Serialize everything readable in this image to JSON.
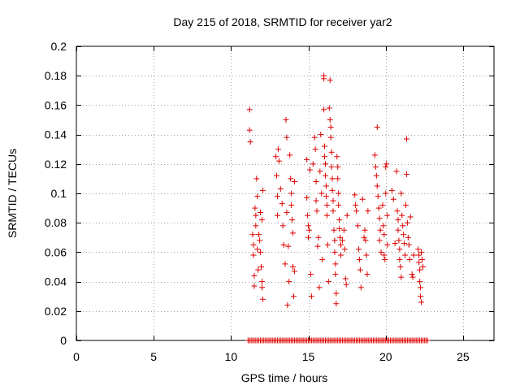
{
  "chart_data": {
    "type": "scatter",
    "title": "Day 215 of 2018, SRMTID for receiver yar2",
    "xlabel": "GPS time / hours",
    "ylabel": "SRMTID / TECUs",
    "xlim": [
      0,
      27
    ],
    "ylim": [
      0,
      0.2
    ],
    "xticks": [
      0,
      5,
      10,
      15,
      20,
      25
    ],
    "xtick_labels": [
      "0",
      "5",
      "10",
      "15",
      "20",
      "25"
    ],
    "yticks": [
      0,
      0.02,
      0.04,
      0.06,
      0.08,
      0.1,
      0.12,
      0.14,
      0.16,
      0.18,
      0.2
    ],
    "ytick_labels": [
      "0",
      "0.02",
      "0.04",
      "0.06",
      "0.08",
      "0.1",
      "0.12",
      "0.14",
      "0.16",
      "0.18",
      "0.2"
    ],
    "grid": true,
    "marker": "+",
    "marker_color": "#dd0000",
    "series": [
      {
        "name": "SRMTID",
        "points": [
          [
            11.2,
            0.157
          ],
          [
            11.2,
            0.143
          ],
          [
            11.25,
            0.135
          ],
          [
            11.4,
            0.072
          ],
          [
            11.45,
            0.065
          ],
          [
            11.45,
            0.058
          ],
          [
            11.5,
            0.044
          ],
          [
            11.5,
            0.037
          ],
          [
            11.55,
            0.09
          ],
          [
            11.6,
            0.085
          ],
          [
            11.6,
            0.078
          ],
          [
            11.65,
            0.11
          ],
          [
            11.7,
            0.098
          ],
          [
            11.7,
            0.062
          ],
          [
            11.75,
            0.048
          ],
          [
            11.8,
            0.072
          ],
          [
            11.85,
            0.068
          ],
          [
            11.9,
            0.087
          ],
          [
            11.9,
            0.06
          ],
          [
            11.95,
            0.05
          ],
          [
            12.0,
            0.04
          ],
          [
            12.0,
            0.036
          ],
          [
            12.05,
            0.028
          ],
          [
            12.0,
            0.082
          ],
          [
            12.05,
            0.102
          ],
          [
            12.9,
            0.125
          ],
          [
            12.95,
            0.112
          ],
          [
            13.0,
            0.098
          ],
          [
            13.0,
            0.085
          ],
          [
            13.05,
            0.13
          ],
          [
            13.1,
            0.122
          ],
          [
            13.2,
            0.103
          ],
          [
            13.3,
            0.093
          ],
          [
            13.35,
            0.078
          ],
          [
            13.4,
            0.065
          ],
          [
            13.5,
            0.052
          ],
          [
            13.55,
            0.15
          ],
          [
            13.6,
            0.138
          ],
          [
            13.6,
            0.087
          ],
          [
            13.65,
            0.024
          ],
          [
            13.7,
            0.064
          ],
          [
            13.75,
            0.04
          ],
          [
            13.8,
            0.126
          ],
          [
            13.85,
            0.11
          ],
          [
            13.9,
            0.1
          ],
          [
            13.9,
            0.092
          ],
          [
            13.95,
            0.082
          ],
          [
            14.0,
            0.073
          ],
          [
            14.0,
            0.05
          ],
          [
            14.05,
            0.03
          ],
          [
            14.1,
            0.108
          ],
          [
            14.1,
            0.047
          ],
          [
            14.9,
            0.123
          ],
          [
            14.9,
            0.097
          ],
          [
            14.95,
            0.085
          ],
          [
            15.0,
            0.078
          ],
          [
            15.0,
            0.07
          ],
          [
            15.05,
            0.075
          ],
          [
            15.1,
            0.116
          ],
          [
            15.15,
            0.045
          ],
          [
            15.2,
            0.03
          ],
          [
            15.3,
            0.12
          ],
          [
            15.4,
            0.138
          ],
          [
            15.45,
            0.13
          ],
          [
            15.5,
            0.108
          ],
          [
            15.5,
            0.095
          ],
          [
            15.55,
            0.088
          ],
          [
            15.6,
            0.064
          ],
          [
            15.65,
            0.07
          ],
          [
            15.7,
            0.036
          ],
          [
            15.75,
            0.115
          ],
          [
            15.8,
            0.14
          ],
          [
            15.85,
            0.1
          ],
          [
            15.9,
            0.055
          ],
          [
            16.0,
            0.18
          ],
          [
            16.0,
            0.178
          ],
          [
            16.0,
            0.157
          ],
          [
            16.05,
            0.132
          ],
          [
            16.05,
            0.125
          ],
          [
            16.1,
            0.12
          ],
          [
            16.1,
            0.112
          ],
          [
            16.15,
            0.105
          ],
          [
            16.15,
            0.098
          ],
          [
            16.2,
            0.092
          ],
          [
            16.2,
            0.085
          ],
          [
            16.25,
            0.065
          ],
          [
            16.3,
            0.04
          ],
          [
            16.35,
            0.158
          ],
          [
            16.4,
            0.177
          ],
          [
            16.4,
            0.15
          ],
          [
            16.45,
            0.145
          ],
          [
            16.45,
            0.138
          ],
          [
            16.5,
            0.128
          ],
          [
            16.5,
            0.118
          ],
          [
            16.55,
            0.11
          ],
          [
            16.55,
            0.102
          ],
          [
            16.6,
            0.095
          ],
          [
            16.6,
            0.088
          ],
          [
            16.65,
            0.075
          ],
          [
            16.7,
            0.068
          ],
          [
            16.7,
            0.06
          ],
          [
            16.75,
            0.052
          ],
          [
            16.75,
            0.045
          ],
          [
            16.8,
            0.025
          ],
          [
            16.8,
            0.032
          ],
          [
            16.85,
            0.125
          ],
          [
            16.9,
            0.118
          ],
          [
            16.9,
            0.11
          ],
          [
            16.95,
            0.1
          ],
          [
            16.95,
            0.092
          ],
          [
            17.0,
            0.082
          ],
          [
            17.0,
            0.076
          ],
          [
            17.05,
            0.07
          ],
          [
            17.1,
            0.065
          ],
          [
            17.1,
            0.058
          ],
          [
            17.2,
            0.068
          ],
          [
            17.3,
            0.075
          ],
          [
            17.35,
            0.062
          ],
          [
            17.4,
            0.042
          ],
          [
            17.45,
            0.038
          ],
          [
            17.5,
            0.085
          ],
          [
            18.0,
            0.099
          ],
          [
            18.05,
            0.092
          ],
          [
            18.1,
            0.088
          ],
          [
            18.2,
            0.078
          ],
          [
            18.25,
            0.062
          ],
          [
            18.3,
            0.055
          ],
          [
            18.35,
            0.048
          ],
          [
            18.4,
            0.036
          ],
          [
            18.5,
            0.096
          ],
          [
            18.6,
            0.07
          ],
          [
            18.65,
            0.075
          ],
          [
            18.7,
            0.068
          ],
          [
            18.75,
            0.058
          ],
          [
            18.8,
            0.045
          ],
          [
            18.85,
            0.088
          ],
          [
            19.3,
            0.126
          ],
          [
            19.35,
            0.118
          ],
          [
            19.4,
            0.112
          ],
          [
            19.45,
            0.145
          ],
          [
            19.45,
            0.105
          ],
          [
            19.5,
            0.098
          ],
          [
            19.55,
            0.09
          ],
          [
            19.6,
            0.083
          ],
          [
            19.6,
            0.068
          ],
          [
            19.65,
            0.075
          ],
          [
            19.7,
            0.06
          ],
          [
            19.8,
            0.092
          ],
          [
            19.85,
            0.078
          ],
          [
            19.9,
            0.072
          ],
          [
            19.9,
            0.058
          ],
          [
            19.95,
            0.055
          ],
          [
            20.0,
            0.1
          ],
          [
            20.0,
            0.118
          ],
          [
            20.05,
            0.12
          ],
          [
            20.1,
            0.085
          ],
          [
            20.1,
            0.065
          ],
          [
            20.4,
            0.102
          ],
          [
            20.5,
            0.096
          ],
          [
            20.6,
            0.066
          ],
          [
            20.7,
            0.115
          ],
          [
            20.75,
            0.088
          ],
          [
            20.8,
            0.082
          ],
          [
            20.8,
            0.075
          ],
          [
            20.85,
            0.068
          ],
          [
            20.9,
            0.062
          ],
          [
            20.9,
            0.055
          ],
          [
            20.95,
            0.05
          ],
          [
            21.0,
            0.043
          ],
          [
            21.0,
            0.1
          ],
          [
            21.05,
            0.085
          ],
          [
            21.1,
            0.078
          ],
          [
            21.15,
            0.072
          ],
          [
            21.2,
            0.066
          ],
          [
            21.25,
            0.058
          ],
          [
            21.3,
            0.092
          ],
          [
            21.35,
            0.137
          ],
          [
            21.35,
            0.113
          ],
          [
            21.4,
            0.08
          ],
          [
            21.45,
            0.07
          ],
          [
            21.5,
            0.065
          ],
          [
            21.55,
            0.055
          ],
          [
            21.6,
            0.084
          ],
          [
            21.7,
            0.045
          ],
          [
            21.75,
            0.043
          ],
          [
            21.8,
            0.058
          ],
          [
            22.1,
            0.062
          ],
          [
            22.15,
            0.058
          ],
          [
            22.15,
            0.053
          ],
          [
            22.2,
            0.048
          ],
          [
            22.2,
            0.04
          ],
          [
            22.25,
            0.036
          ],
          [
            22.25,
            0.03
          ],
          [
            22.3,
            0.026
          ],
          [
            22.3,
            0.06
          ],
          [
            22.35,
            0.055
          ],
          [
            22.4,
            0.05
          ]
        ],
        "zero_x": [
          11.1,
          11.2,
          11.3,
          11.4,
          11.5,
          11.6,
          11.7,
          11.8,
          11.9,
          12.0,
          12.1,
          12.2,
          12.3,
          12.4,
          12.5,
          12.6,
          12.7,
          12.8,
          12.9,
          13.0,
          13.1,
          13.2,
          13.3,
          13.4,
          13.5,
          13.6,
          13.7,
          13.8,
          13.9,
          14.0,
          14.1,
          14.2,
          14.3,
          14.4,
          14.5,
          14.6,
          14.7,
          14.8,
          14.9,
          15.0,
          15.1,
          15.2,
          15.3,
          15.4,
          15.5,
          15.6,
          15.7,
          15.8,
          15.9,
          16.0,
          16.1,
          16.2,
          16.3,
          16.4,
          16.5,
          16.6,
          16.7,
          16.8,
          16.9,
          17.0,
          17.1,
          17.2,
          17.3,
          17.4,
          17.5,
          17.6,
          17.7,
          17.8,
          17.9,
          18.0,
          18.1,
          18.2,
          18.3,
          18.4,
          18.5,
          18.6,
          18.7,
          18.8,
          18.9,
          19.0,
          19.1,
          19.2,
          19.3,
          19.4,
          19.5,
          19.6,
          19.7,
          19.8,
          19.9,
          20.0,
          20.1,
          20.2,
          20.3,
          20.4,
          20.5,
          20.6,
          20.7,
          20.8,
          20.9,
          21.0,
          21.1,
          21.2,
          21.3,
          21.4,
          21.5,
          21.6,
          21.7,
          21.8,
          21.9,
          22.0,
          22.1,
          22.2,
          22.3,
          22.4,
          22.5,
          22.6,
          22.7
        ]
      }
    ]
  }
}
